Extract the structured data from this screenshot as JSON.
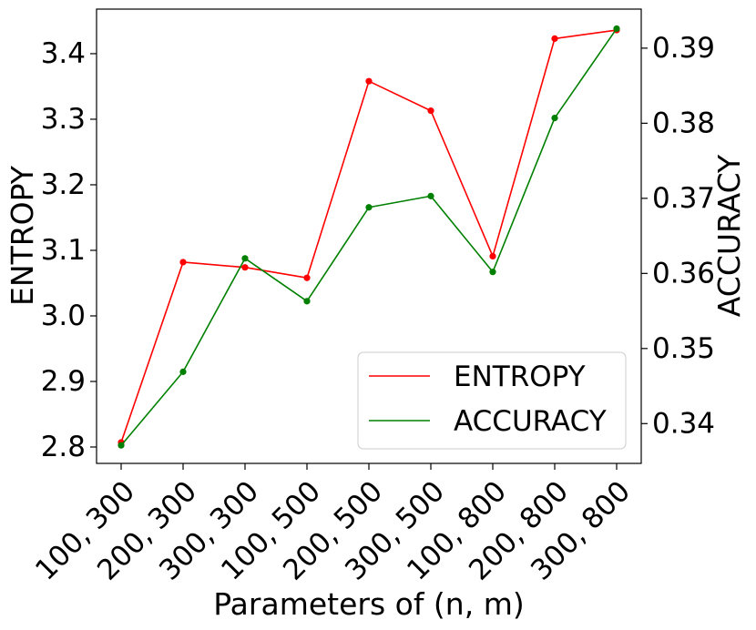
{
  "chart_data": {
    "type": "line",
    "categories": [
      "100, 300",
      "200, 300",
      "300, 300",
      "100, 500",
      "200, 500",
      "300, 500",
      "100, 800",
      "200, 800",
      "300, 800"
    ],
    "xlabel": "Parameters of (n, m)",
    "ylabel_left": "ENTROPY",
    "ylabel_right": "ACCURACY",
    "ylim_left": [
      2.775,
      3.468
    ],
    "ylim_right": [
      0.3347,
      0.3952
    ],
    "yticks_left": [
      "2.8",
      "2.9",
      "3.0",
      "3.1",
      "3.2",
      "3.3",
      "3.4"
    ],
    "yticks_right": [
      "0.34",
      "0.35",
      "0.36",
      "0.37",
      "0.38",
      "0.39"
    ],
    "series": [
      {
        "name": "ENTROPY",
        "axis": "left",
        "color": "#ff0000",
        "values": [
          2.807,
          3.082,
          3.074,
          3.058,
          3.358,
          3.313,
          3.091,
          3.423,
          3.436
        ]
      },
      {
        "name": "ACCURACY",
        "axis": "right",
        "color": "#008000",
        "values": [
          0.3371,
          0.3469,
          0.362,
          0.3563,
          0.3688,
          0.3703,
          0.3602,
          0.3807,
          0.3926
        ]
      }
    ],
    "legend": {
      "position": "lower-right"
    },
    "grid": false
  }
}
